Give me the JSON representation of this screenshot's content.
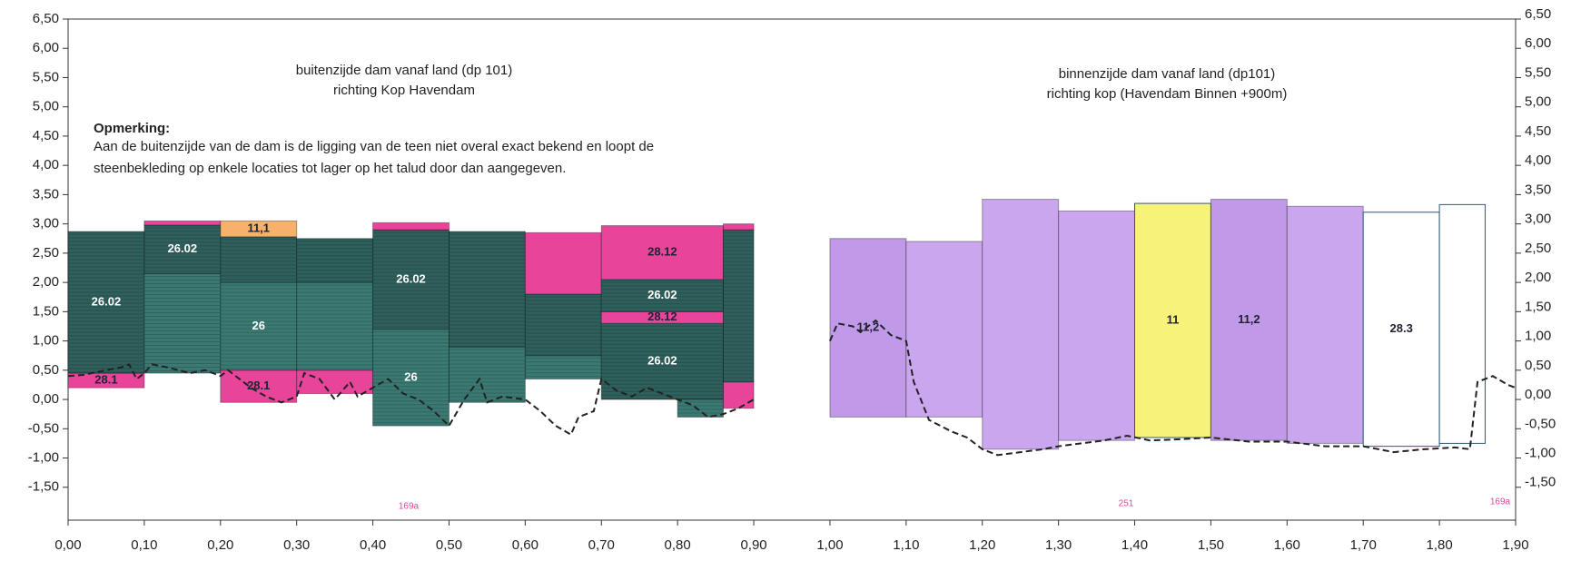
{
  "chart_data": {
    "type": "profile",
    "texts": [
      "buitenzijde dam vanaf land (dp 101)",
      "richting Kop Havendam",
      "Opmerking:",
      "Aan de buitenzijde van de dam is de ligging van de teen niet overal exact bekend en loopt de",
      "steenbekleding op enkele locaties tot lager op het talud door dan aangegeven.",
      "binnenzijde dam vanaf land (dp101)",
      "richting kop (Havendam Binnen +900m)",
      "169a",
      "251",
      "169a"
    ],
    "xlim": [
      0,
      1.9
    ],
    "ylim": [
      -2,
      6.5
    ],
    "y2lim": [
      -2,
      6.5
    ],
    "xticks": [
      {
        "value": 0,
        "label": "0,00"
      },
      {
        "value": 0.1,
        "label": "0,10"
      },
      {
        "value": 0.2,
        "label": "0,20"
      },
      {
        "value": 0.3,
        "label": "0,30"
      },
      {
        "value": 0.4,
        "label": "0,40"
      },
      {
        "value": 0.5,
        "label": "0,50"
      },
      {
        "value": 0.6,
        "label": "0,60"
      },
      {
        "value": 0.7,
        "label": "0,70"
      },
      {
        "value": 0.8,
        "label": "0,80"
      },
      {
        "value": 0.9,
        "label": "0,90"
      },
      {
        "value": 1,
        "label": "1,00"
      },
      {
        "value": 1.1,
        "label": "1,10"
      },
      {
        "value": 1.2,
        "label": "1,20"
      },
      {
        "value": 1.3,
        "label": "1,30"
      },
      {
        "value": 1.4,
        "label": "1,40"
      },
      {
        "value": 1.5,
        "label": "1,50"
      },
      {
        "value": 1.6,
        "label": "1,60"
      },
      {
        "value": 1.7,
        "label": "1,70"
      },
      {
        "value": 1.8,
        "label": "1,80"
      },
      {
        "value": 1.9,
        "label": "1,90"
      }
    ],
    "yticks": [
      {
        "value": 6.5,
        "label": "6,50"
      },
      {
        "value": 6,
        "label": "6,00"
      },
      {
        "value": 5.5,
        "label": "5,50"
      },
      {
        "value": 5,
        "label": "5,00"
      },
      {
        "value": 4.5,
        "label": "4,50"
      },
      {
        "value": 4,
        "label": "4,00"
      },
      {
        "value": 3.5,
        "label": "3,50"
      },
      {
        "value": 3,
        "label": "3,00"
      },
      {
        "value": 2.5,
        "label": "2,50"
      },
      {
        "value": 2,
        "label": "2,00"
      },
      {
        "value": 1.5,
        "label": "1,50"
      },
      {
        "value": 1,
        "label": "1,00"
      },
      {
        "value": 0.5,
        "label": "0,50"
      },
      {
        "value": 0,
        "label": "0,00"
      },
      {
        "value": -0.5,
        "label": "-0,50"
      },
      {
        "value": -1,
        "label": "-1,00"
      },
      {
        "value": -1.5,
        "label": "-1,50"
      }
    ],
    "y2ticks": [
      {
        "value": 6.5,
        "label": "6,50"
      },
      {
        "value": 6,
        "label": "6,00"
      },
      {
        "value": 5.5,
        "label": "5,50"
      },
      {
        "value": 5,
        "label": "5,00"
      },
      {
        "value": 4.5,
        "label": "4,50"
      },
      {
        "value": 4,
        "label": "4,00"
      },
      {
        "value": 3.5,
        "label": "3,50"
      },
      {
        "value": 3,
        "label": "3,00"
      },
      {
        "value": 2.5,
        "label": "2,50"
      },
      {
        "value": 2,
        "label": "2,00"
      },
      {
        "value": 1.5,
        "label": "1,50"
      },
      {
        "value": 1,
        "label": "1,00"
      },
      {
        "value": 0.5,
        "label": "0,50"
      },
      {
        "value": 0,
        "label": "0,00"
      },
      {
        "value": -0.5,
        "label": "-0,50"
      },
      {
        "value": -1,
        "label": "-1,00"
      },
      {
        "value": -1.5,
        "label": "-1,50"
      }
    ],
    "segments": [
      {
        "x": [
          0,
          0.1
        ],
        "y": [
          0.2,
          0.45
        ],
        "color": "#e8449a",
        "label": "28.1"
      },
      {
        "x": [
          0,
          0.1
        ],
        "y": [
          0.45,
          2.87
        ],
        "color": "#2f605c",
        "label": "26.02"
      },
      {
        "x": [
          0.1,
          0.2
        ],
        "y": [
          0.45,
          2.15
        ],
        "color": "#3b7a73"
      },
      {
        "x": [
          0.1,
          0.2
        ],
        "y": [
          2.15,
          2.98
        ],
        "color": "#2f605c",
        "label": "26.02"
      },
      {
        "x": [
          0.1,
          0.2
        ],
        "y": [
          2.98,
          3.05
        ],
        "color": "#e8449a"
      },
      {
        "x": [
          0.2,
          0.3
        ],
        "y": [
          -0.05,
          0.5
        ],
        "color": "#e8449a",
        "label": "28.1"
      },
      {
        "x": [
          0.2,
          0.3
        ],
        "y": [
          0.5,
          2.0
        ],
        "color": "#3b7a73",
        "label": "26"
      },
      {
        "x": [
          0.2,
          0.3
        ],
        "y": [
          2.0,
          2.78
        ],
        "color": "#2f605c"
      },
      {
        "x": [
          0.2,
          0.3
        ],
        "y": [
          2.78,
          3.05
        ],
        "color": "#f6b26b",
        "label": "11,1"
      },
      {
        "x": [
          0.3,
          0.4
        ],
        "y": [
          0.1,
          0.5
        ],
        "color": "#e8449a"
      },
      {
        "x": [
          0.3,
          0.4
        ],
        "y": [
          0.5,
          2.0
        ],
        "color": "#3b7a73"
      },
      {
        "x": [
          0.3,
          0.4
        ],
        "y": [
          2.0,
          2.75
        ],
        "color": "#2f605c"
      },
      {
        "x": [
          0.4,
          0.5
        ],
        "y": [
          -0.45,
          1.2
        ],
        "color": "#3b7a73",
        "label": "26"
      },
      {
        "x": [
          0.4,
          0.5
        ],
        "y": [
          1.2,
          2.9
        ],
        "color": "#2f605c",
        "label": "26.02"
      },
      {
        "x": [
          0.4,
          0.5
        ],
        "y": [
          2.9,
          3.02
        ],
        "color": "#e8449a"
      },
      {
        "x": [
          0.5,
          0.6
        ],
        "y": [
          -0.05,
          0.9
        ],
        "color": "#3b7a73"
      },
      {
        "x": [
          0.5,
          0.6
        ],
        "y": [
          0.9,
          2.87
        ],
        "color": "#2f605c"
      },
      {
        "x": [
          0.6,
          0.7
        ],
        "y": [
          0.35,
          0.75
        ],
        "color": "#3b7a73"
      },
      {
        "x": [
          0.6,
          0.7
        ],
        "y": [
          0.75,
          1.8
        ],
        "color": "#2f605c"
      },
      {
        "x": [
          0.6,
          0.7
        ],
        "y": [
          1.8,
          2.85
        ],
        "color": "#e8449a"
      },
      {
        "x": [
          0.7,
          0.86
        ],
        "y": [
          0,
          1.3
        ],
        "color": "#2f605c",
        "label": "26.02"
      },
      {
        "x": [
          0.7,
          0.86
        ],
        "y": [
          1.3,
          1.5
        ],
        "color": "#e8449a",
        "label": "28.12"
      },
      {
        "x": [
          0.7,
          0.86
        ],
        "y": [
          1.5,
          2.05
        ],
        "color": "#2f605c",
        "label": "26.02"
      },
      {
        "x": [
          0.7,
          0.86
        ],
        "y": [
          2.05,
          2.97
        ],
        "color": "#e8449a",
        "label": "28.12"
      },
      {
        "x": [
          0.8,
          0.86
        ],
        "y": [
          -0.3,
          0
        ],
        "color": "#3b7a73"
      },
      {
        "x": [
          0.86,
          0.9
        ],
        "y": [
          -0.15,
          0.3
        ],
        "color": "#e8449a"
      },
      {
        "x": [
          0.86,
          0.9
        ],
        "y": [
          0.3,
          2.9
        ],
        "color": "#2f605c"
      },
      {
        "x": [
          0.86,
          0.9
        ],
        "y": [
          2.9,
          3.0
        ],
        "color": "#e8449a"
      },
      {
        "x": [
          1.0,
          1.1
        ],
        "y": [
          -0.3,
          2.75
        ],
        "color": "#c09ae8",
        "label": "11,2"
      },
      {
        "x": [
          1.1,
          1.2
        ],
        "y": [
          -0.3,
          2.7
        ],
        "color": "#c9a6ee"
      },
      {
        "x": [
          1.2,
          1.3
        ],
        "y": [
          -0.85,
          3.42
        ],
        "color": "#c9a6ee"
      },
      {
        "x": [
          1.3,
          1.4
        ],
        "y": [
          -0.7,
          3.22
        ],
        "color": "#c9a6ee"
      },
      {
        "x": [
          1.4,
          1.5
        ],
        "y": [
          -0.65,
          3.35
        ],
        "color": "#f7f37a",
        "label": "11"
      },
      {
        "x": [
          1.5,
          1.6
        ],
        "y": [
          -0.7,
          3.42
        ],
        "color": "#c09ae8",
        "label": "11,2"
      },
      {
        "x": [
          1.6,
          1.7
        ],
        "y": [
          -0.75,
          3.3
        ],
        "color": "#c9a6ee"
      },
      {
        "x": [
          1.7,
          1.8
        ],
        "y": [
          -0.8,
          3.2
        ],
        "color": "#ffffff",
        "label": "28.3"
      },
      {
        "x": [
          1.8,
          1.86
        ],
        "y": [
          -0.75,
          3.33
        ],
        "color": "#ffffff"
      }
    ],
    "line": {
      "color": "#222222",
      "x": [
        0,
        0.02,
        0.05,
        0.07,
        0.08,
        0.09,
        0.1,
        0.11,
        0.13,
        0.16,
        0.18,
        0.2,
        0.21,
        0.22,
        0.24,
        0.26,
        0.28,
        0.3,
        0.31,
        0.33,
        0.35,
        0.37,
        0.38,
        0.4,
        0.42,
        0.44,
        0.46,
        0.48,
        0.5,
        0.52,
        0.54,
        0.55,
        0.57,
        0.6,
        0.62,
        0.64,
        0.66,
        0.67,
        0.69,
        0.7,
        0.72,
        0.74,
        0.76,
        0.78,
        0.8,
        0.82,
        0.84,
        0.86,
        0.88,
        0.9,
        null,
        1.0,
        1.01,
        1.03,
        1.04,
        1.06,
        1.08,
        1.1,
        1.11,
        1.13,
        1.16,
        1.18,
        1.2,
        1.22,
        1.25,
        1.28,
        1.3,
        1.33,
        1.36,
        1.39,
        1.42,
        1.46,
        1.5,
        1.55,
        1.6,
        1.65,
        1.7,
        1.74,
        1.78,
        1.82,
        1.84,
        1.85,
        1.87,
        1.89,
        1.9
      ],
      "y": [
        0.4,
        0.42,
        0.5,
        0.55,
        0.6,
        0.35,
        0.45,
        0.6,
        0.55,
        0.45,
        0.5,
        0.4,
        0.5,
        0.4,
        0.2,
        0.05,
        -0.05,
        0.05,
        0.45,
        0.35,
        0,
        0.3,
        0.05,
        0.2,
        0.35,
        0.1,
        0,
        -0.2,
        -0.45,
        0,
        0.35,
        -0.05,
        0.05,
        0,
        -0.2,
        -0.45,
        -0.6,
        -0.3,
        -0.2,
        0.35,
        0.15,
        0.05,
        0.2,
        0.1,
        0,
        -0.1,
        -0.3,
        -0.25,
        -0.15,
        0,
        null,
        1.0,
        1.3,
        1.25,
        1.15,
        1.35,
        1.1,
        1.0,
        0.3,
        -0.35,
        -0.55,
        -0.65,
        -0.85,
        -0.95,
        -0.9,
        -0.85,
        -0.8,
        -0.75,
        -0.7,
        -0.62,
        -0.7,
        -0.68,
        -0.65,
        -0.72,
        -0.72,
        -0.8,
        -0.8,
        -0.9,
        -0.85,
        -0.82,
        -0.85,
        0.3,
        0.4,
        0.25,
        0.2
      ]
    }
  }
}
